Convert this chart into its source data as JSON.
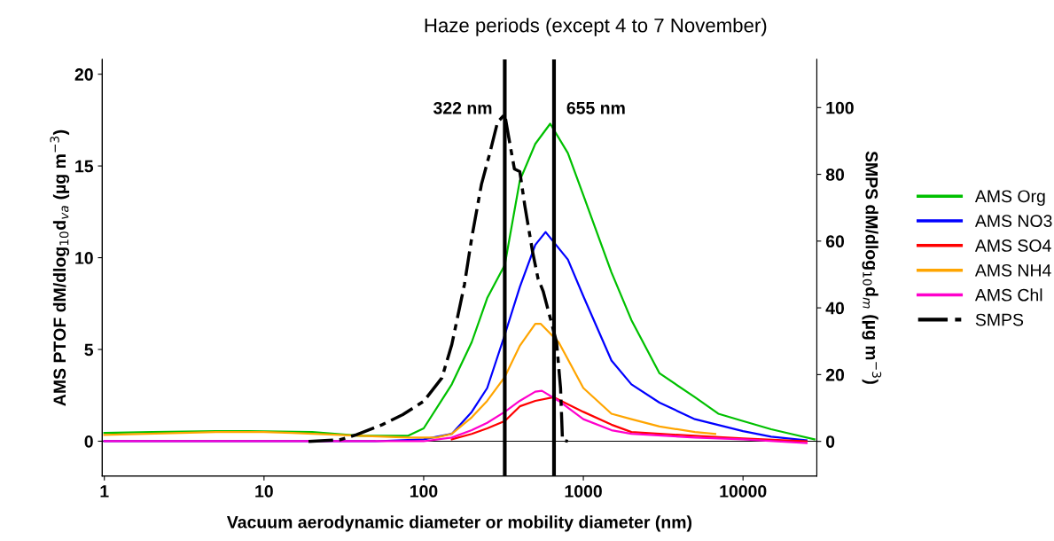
{
  "chart_data": {
    "type": "line",
    "title": "Haze periods (except 4 to 7 November)",
    "xlabel": "Vacuum aerodynamic diameter or mobility diameter (nm)",
    "ylabel": "AMS PTOF dM/dlog$_{10}$d$_{va}$ (µg m$^{−3}$)",
    "y2label": "SMPS dM/dlog$_{10}$d$_{m}$ (µg m$^{−3}$)",
    "log": "x",
    "xlim": [
      0.97,
      29000
    ],
    "xticks": [
      1,
      10,
      100,
      1000,
      10000
    ],
    "ylim": [
      -1.9,
      20.8
    ],
    "yticks": [
      0,
      5,
      10,
      15,
      20
    ],
    "y2lim": [
      -10.4,
      114.4
    ],
    "y2ticks": [
      0,
      20,
      40,
      60,
      80,
      100
    ],
    "grid": false,
    "legend": "right",
    "marker": "none",
    "series": [
      {
        "name": "AMS Org",
        "color": "#00c000",
        "x": [
          1,
          2,
          5,
          8,
          20,
          40,
          80,
          100,
          150,
          200,
          250,
          322,
          400,
          500,
          620,
          800,
          1000,
          1500,
          2000,
          3000,
          5000,
          7000,
          10000,
          15000,
          20000,
          28000
        ],
        "values": [
          0.45,
          0.5,
          0.55,
          0.55,
          0.5,
          0.3,
          0.3,
          0.7,
          3.1,
          5.4,
          7.8,
          9.6,
          14.2,
          16.2,
          17.3,
          15.7,
          13.4,
          9.2,
          6.6,
          3.7,
          2.4,
          1.5,
          1.1,
          0.65,
          0.4,
          0.1
        ]
      },
      {
        "name": "AMS NO3",
        "color": "#0000ff",
        "x": [
          1,
          10,
          50,
          100,
          150,
          200,
          250,
          322,
          400,
          500,
          580,
          800,
          1000,
          1500,
          2000,
          3000,
          5000,
          10000,
          15000,
          25000
        ],
        "values": [
          0,
          0,
          0,
          0.1,
          0.4,
          1.6,
          2.9,
          5.8,
          8.4,
          10.7,
          11.4,
          9.9,
          7.9,
          4.4,
          3.1,
          2.1,
          1.2,
          0.55,
          0.25,
          0.05
        ]
      },
      {
        "name": "AMS SO4",
        "color": "#ff0000",
        "x": [
          150,
          200,
          250,
          322,
          400,
          500,
          650,
          1000,
          1500,
          2000,
          3000,
          5000,
          10000,
          25000
        ],
        "values": [
          0.1,
          0.4,
          0.7,
          1.1,
          1.9,
          2.2,
          2.4,
          1.6,
          0.9,
          0.5,
          0.4,
          0.3,
          0.15,
          0
        ]
      },
      {
        "name": "AMS NH4",
        "color": "#ffa500",
        "x": [
          1,
          5,
          10,
          15,
          40,
          80,
          120,
          150,
          200,
          250,
          322,
          400,
          500,
          540,
          700,
          1000,
          1500,
          2000,
          3000,
          5000,
          6700
        ],
        "values": [
          0.35,
          0.5,
          0.5,
          0.45,
          0.3,
          0.2,
          0.2,
          0.4,
          1.3,
          2.2,
          3.5,
          5.2,
          6.4,
          6.4,
          5.4,
          2.9,
          1.5,
          1.2,
          0.8,
          0.5,
          0.4
        ]
      },
      {
        "name": "AMS Chl",
        "color": "#ff00cc",
        "x": [
          1,
          10,
          50,
          100,
          150,
          200,
          250,
          322,
          400,
          500,
          550,
          700,
          1000,
          1500,
          2000,
          5000,
          10000,
          25000
        ],
        "values": [
          0,
          0,
          0,
          0,
          0.2,
          0.6,
          1.0,
          1.6,
          2.2,
          2.7,
          2.75,
          2.2,
          1.2,
          0.6,
          0.4,
          0.2,
          0.1,
          -0.1
        ]
      },
      {
        "name": "SMPS",
        "color": "#000000",
        "axis": "y2",
        "line_style": "dashed",
        "x": [
          19,
          30,
          38,
          55,
          74,
          100,
          130,
          150,
          180,
          200,
          230,
          260,
          290,
          322,
          340,
          370,
          400,
          430,
          480,
          520,
          560,
          620,
          680,
          720,
          740,
          800
        ],
        "values": [
          0,
          0.5,
          2,
          5,
          8,
          12,
          19,
          29,
          47,
          61,
          77,
          86.5,
          95.6,
          98,
          91.4,
          81.6,
          80.8,
          70.6,
          57,
          48.8,
          45,
          37,
          29.6,
          15.8,
          0.4,
          0
        ]
      }
    ],
    "ref_lines": [
      {
        "axis": "y",
        "value": 0,
        "color": "#000000"
      },
      {
        "axis": "x",
        "value": 322,
        "label": "322 nm",
        "color": "#000000"
      },
      {
        "axis": "x",
        "value": 655,
        "label": "655 nm",
        "color": "#000000"
      }
    ]
  }
}
